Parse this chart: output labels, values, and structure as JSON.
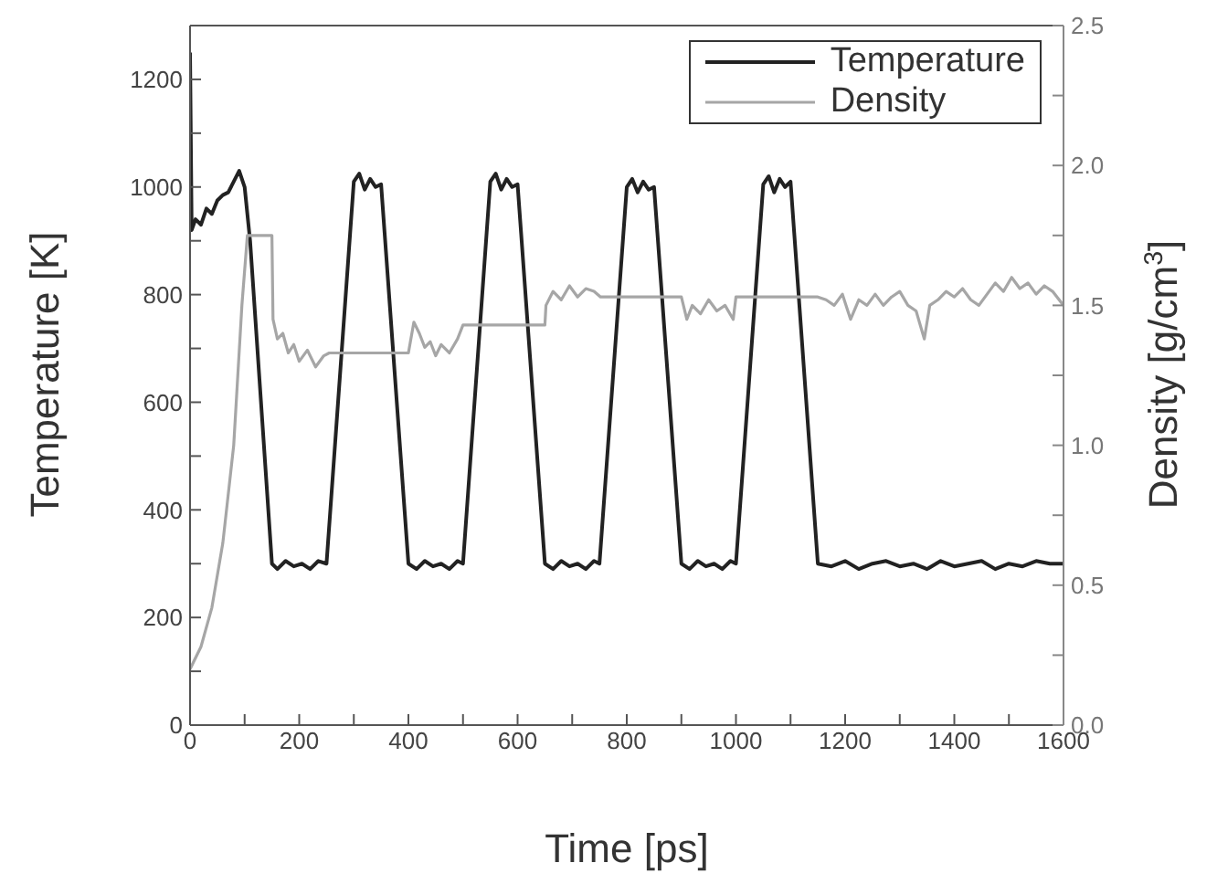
{
  "chart_data": {
    "type": "line",
    "xlabel": "Time [ps]",
    "ylabel": "Temperature [K]",
    "y2label": "Density [g/cm$^{3}$]",
    "xlim": [
      0,
      1600
    ],
    "xticks": [
      0,
      {
        "value": 100,
        "label": null
      },
      200,
      {
        "value": 300,
        "label": null
      },
      400,
      {
        "value": 500,
        "label": null
      },
      600,
      {
        "value": 700,
        "label": null
      },
      800,
      {
        "value": 900,
        "label": null
      },
      1000,
      {
        "value": 1100,
        "label": null
      },
      1200,
      {
        "value": 1300,
        "label": null
      },
      1400,
      {
        "value": 1500,
        "label": null
      },
      1600
    ],
    "ylim": [
      0,
      1300
    ],
    "yticks": [
      0,
      {
        "value": 100,
        "label": null
      },
      200,
      {
        "value": 300,
        "label": null
      },
      400,
      {
        "value": 500,
        "label": null
      },
      600,
      {
        "value": 700,
        "label": null
      },
      800,
      {
        "value": 900,
        "label": null
      },
      1000,
      {
        "value": 1100,
        "label": null
      },
      1200
    ],
    "y2lim": [
      0,
      2.5
    ],
    "y2ticks": [
      {
        "value": 0,
        "label": "0.0"
      },
      {
        "value": 0.25,
        "label": null
      },
      0.5,
      {
        "value": 0.75,
        "label": null
      },
      {
        "value": 1,
        "label": "1.0"
      },
      {
        "value": 1.25,
        "label": null
      },
      1.5,
      {
        "value": 1.75,
        "label": null
      },
      {
        "value": 2,
        "label": "2.0"
      },
      {
        "value": 2.25,
        "label": null
      },
      2.5
    ],
    "legend": "top right",
    "marker": "none",
    "line_style": "solid",
    "series": [
      {
        "name": "Temperature",
        "color": "#222222",
        "x": [
          0,
          3,
          10,
          20,
          30,
          40,
          50,
          60,
          70,
          80,
          90,
          100,
          110,
          150,
          160,
          175,
          190,
          205,
          220,
          235,
          250,
          300,
          310,
          320,
          330,
          340,
          350,
          400,
          415,
          430,
          445,
          460,
          475,
          490,
          500,
          550,
          560,
          570,
          580,
          590,
          600,
          650,
          665,
          680,
          695,
          710,
          725,
          740,
          750,
          800,
          810,
          820,
          830,
          840,
          850,
          900,
          915,
          930,
          945,
          960,
          975,
          990,
          1000,
          1050,
          1060,
          1070,
          1080,
          1090,
          1100,
          1150,
          1175,
          1200,
          1225,
          1250,
          1275,
          1300,
          1325,
          1350,
          1375,
          1400,
          1425,
          1450,
          1475,
          1500,
          1525,
          1550,
          1575,
          1600
        ],
        "values": [
          1250,
          920,
          940,
          930,
          960,
          950,
          975,
          985,
          990,
          1010,
          1030,
          1000,
          900,
          300,
          290,
          305,
          295,
          300,
          290,
          305,
          300,
          1010,
          1025,
          995,
          1015,
          1000,
          1005,
          300,
          290,
          305,
          295,
          300,
          290,
          305,
          300,
          1010,
          1025,
          995,
          1015,
          1000,
          1005,
          300,
          290,
          305,
          295,
          300,
          290,
          305,
          300,
          1000,
          1015,
          990,
          1010,
          995,
          1000,
          300,
          290,
          305,
          295,
          300,
          290,
          305,
          300,
          1005,
          1020,
          990,
          1015,
          1000,
          1010,
          300,
          295,
          305,
          290,
          300,
          305,
          295,
          300,
          290,
          305,
          295,
          300,
          305,
          290,
          300,
          295,
          305,
          300,
          300
        ]
      },
      {
        "name": "Density",
        "color": "#a6a6a6",
        "axis": "y2",
        "x": [
          0,
          20,
          40,
          60,
          80,
          95,
          105,
          150,
          152,
          160,
          170,
          180,
          190,
          200,
          215,
          230,
          245,
          255,
          400,
          410,
          420,
          430,
          440,
          450,
          460,
          475,
          490,
          500,
          650,
          652,
          665,
          680,
          695,
          710,
          725,
          740,
          752,
          900,
          910,
          920,
          935,
          950,
          965,
          980,
          995,
          1000,
          1150,
          1165,
          1180,
          1195,
          1210,
          1225,
          1240,
          1255,
          1270,
          1285,
          1300,
          1315,
          1330,
          1345,
          1355,
          1370,
          1385,
          1400,
          1415,
          1430,
          1445,
          1460,
          1475,
          1490,
          1505,
          1520,
          1535,
          1550,
          1565,
          1580,
          1600
        ],
        "values": [
          0.2,
          0.28,
          0.42,
          0.65,
          1.0,
          1.5,
          1.75,
          1.75,
          1.45,
          1.38,
          1.4,
          1.33,
          1.36,
          1.3,
          1.34,
          1.28,
          1.32,
          1.33,
          1.33,
          1.44,
          1.4,
          1.35,
          1.37,
          1.32,
          1.36,
          1.33,
          1.38,
          1.43,
          1.43,
          1.5,
          1.55,
          1.52,
          1.57,
          1.53,
          1.56,
          1.55,
          1.53,
          1.53,
          1.45,
          1.5,
          1.47,
          1.52,
          1.48,
          1.5,
          1.45,
          1.53,
          1.53,
          1.52,
          1.5,
          1.54,
          1.45,
          1.52,
          1.5,
          1.54,
          1.5,
          1.53,
          1.55,
          1.5,
          1.48,
          1.38,
          1.5,
          1.52,
          1.55,
          1.53,
          1.56,
          1.52,
          1.5,
          1.54,
          1.58,
          1.55,
          1.6,
          1.56,
          1.58,
          1.54,
          1.57,
          1.55,
          1.5
        ]
      }
    ]
  }
}
